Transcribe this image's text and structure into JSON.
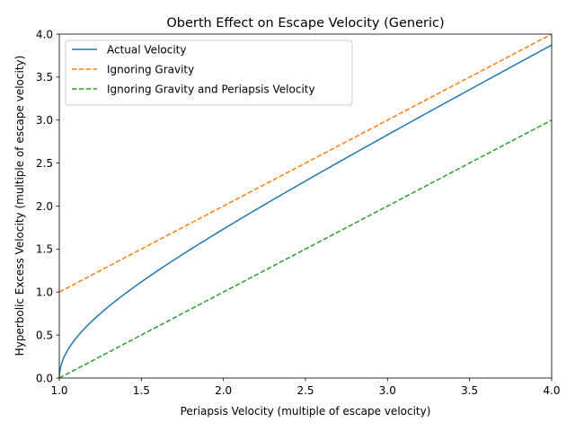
{
  "chart_data": {
    "type": "line",
    "title": "Oberth Effect on Escape Velocity (Generic)",
    "xlabel": "Periapsis Velocity (multiple of escape velocity)",
    "ylabel": "Hyperbolic Excess Velocity (multiple of escape velocity)",
    "xlim": [
      1.0,
      4.0
    ],
    "ylim": [
      0.0,
      4.0
    ],
    "xticks": [
      "1.0",
      "1.5",
      "2.0",
      "2.5",
      "3.0",
      "3.5",
      "4.0"
    ],
    "yticks": [
      "0.0",
      "0.5",
      "1.0",
      "1.5",
      "2.0",
      "2.5",
      "3.0",
      "3.5",
      "4.0"
    ],
    "grid": false,
    "legend_position": "upper-left",
    "series": [
      {
        "name": "Actual Velocity",
        "color": "#1f77b4",
        "style": "solid",
        "x": [
          1.0,
          1.01,
          1.02,
          1.05,
          1.1,
          1.2,
          1.3,
          1.5,
          1.75,
          2.0,
          2.25,
          2.5,
          2.75,
          3.0,
          3.25,
          3.5,
          3.75,
          4.0
        ],
        "y": [
          0.0,
          0.142,
          0.201,
          0.32,
          0.458,
          0.663,
          0.831,
          1.118,
          1.436,
          1.732,
          2.016,
          2.291,
          2.562,
          2.828,
          3.092,
          3.354,
          3.614,
          3.873
        ]
      },
      {
        "name": "Ignoring Gravity",
        "color": "#ff7f0e",
        "style": "dashed",
        "x": [
          1.0,
          4.0
        ],
        "y": [
          1.0,
          4.0
        ]
      },
      {
        "name": "Ignoring Gravity and Periapsis Velocity",
        "color": "#2ca02c",
        "style": "dashed",
        "x": [
          1.0,
          4.0
        ],
        "y": [
          0.0,
          3.0
        ]
      }
    ]
  }
}
